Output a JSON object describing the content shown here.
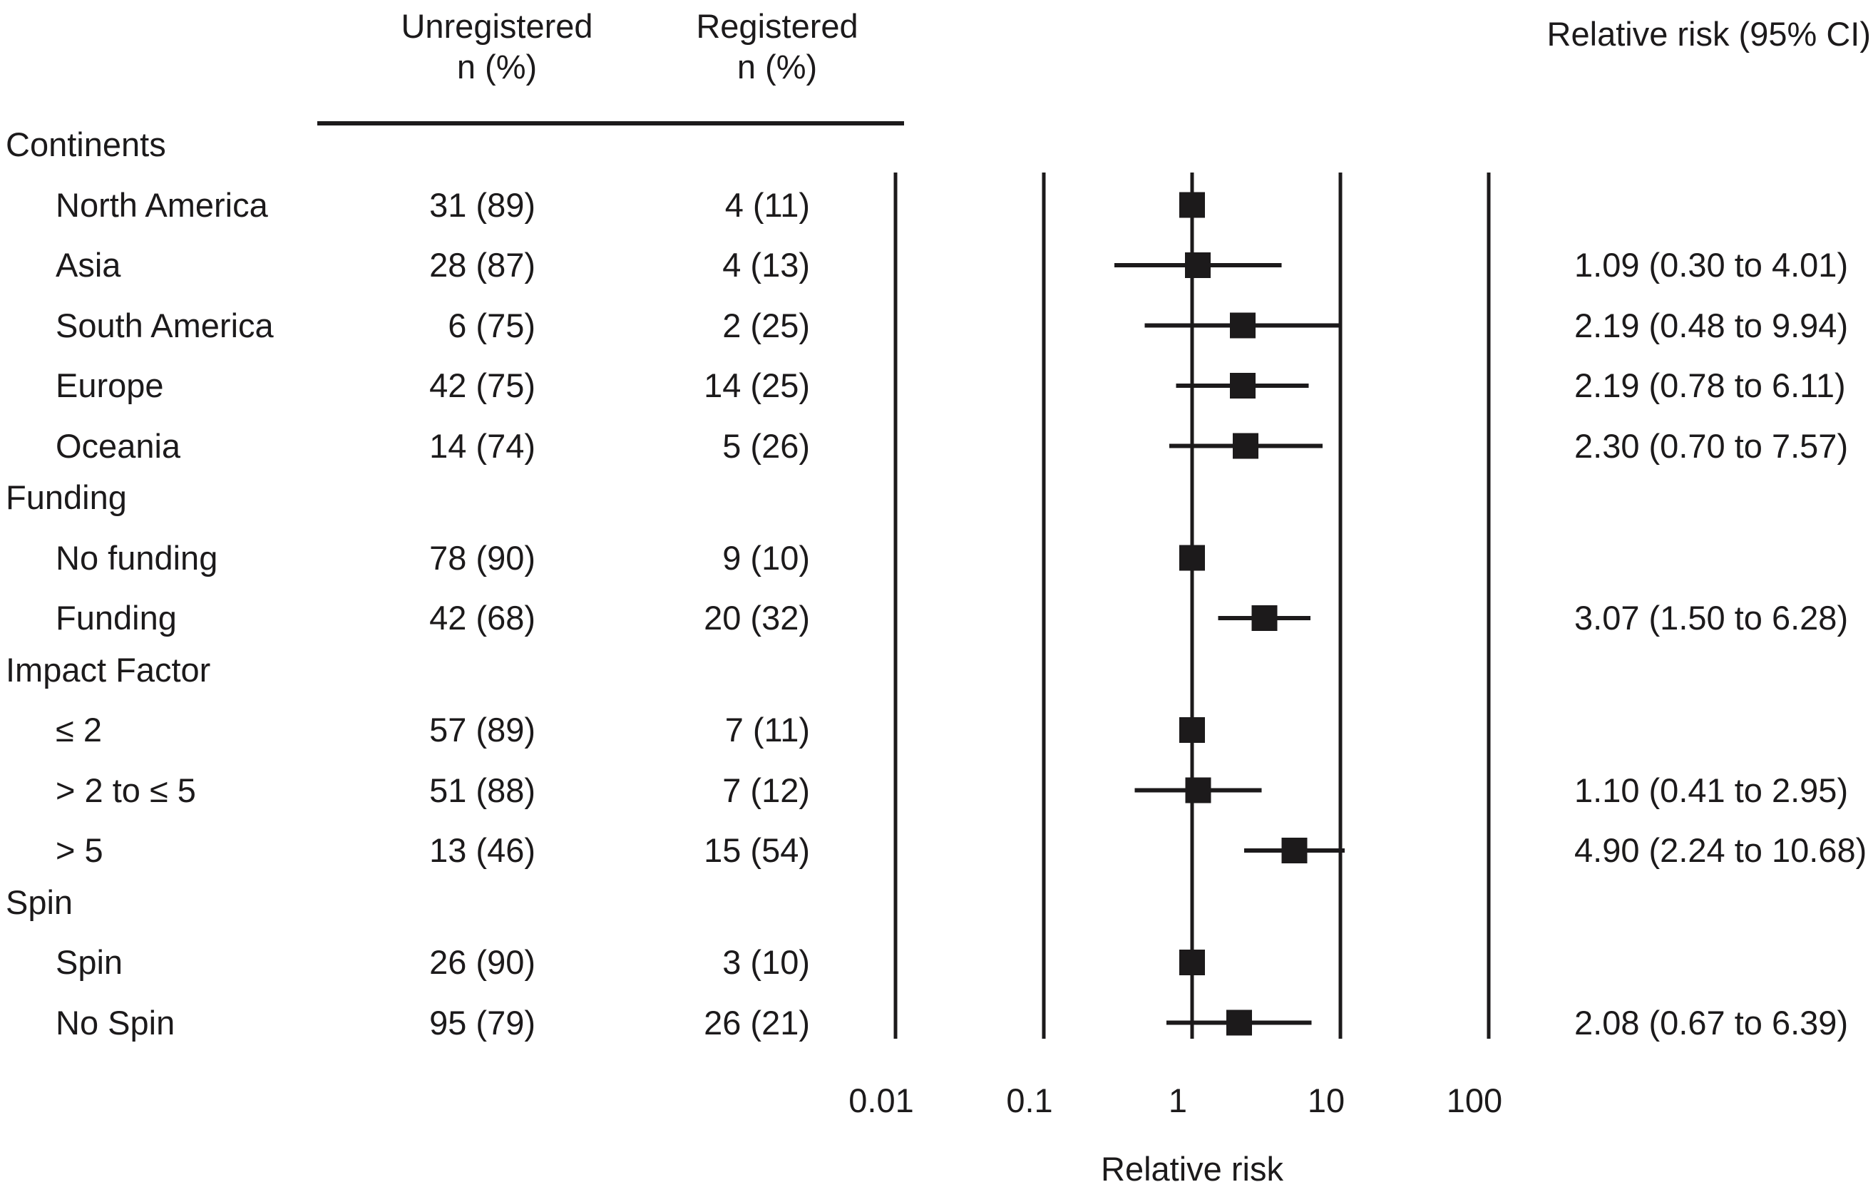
{
  "colors": {
    "ink": "#1c1a1b",
    "background": "#ffffff"
  },
  "header": {
    "unregistered_line1": "Unregistered",
    "unregistered_line2": "n (%)",
    "registered_line1": "Registered",
    "registered_line2": "n (%)",
    "rr_ci": "Relative risk (95% CI)"
  },
  "table": {
    "rows": [
      {
        "type": "group",
        "label": "Continents"
      },
      {
        "type": "item",
        "label": "North America",
        "unregistered": "31 (89)",
        "registered": "4 (11)",
        "ci_text": ""
      },
      {
        "type": "item",
        "label": "Asia",
        "unregistered": "28 (87)",
        "registered": "4 (13)",
        "ci_text": "1.09 (0.30 to 4.01)"
      },
      {
        "type": "item",
        "label": "South America",
        "unregistered": "6 (75)",
        "registered": "2 (25)",
        "ci_text": "2.19 (0.48 to 9.94)"
      },
      {
        "type": "item",
        "label": "Europe",
        "unregistered": "42 (75)",
        "registered": "14 (25)",
        "ci_text": "2.19 (0.78 to 6.11)"
      },
      {
        "type": "item",
        "label": "Oceania",
        "unregistered": "14 (74)",
        "registered": "5 (26)",
        "ci_text": "2.30 (0.70 to 7.57)"
      },
      {
        "type": "group",
        "label": "Funding"
      },
      {
        "type": "item",
        "label": "No funding",
        "unregistered": "78 (90)",
        "registered": "9 (10)",
        "ci_text": ""
      },
      {
        "type": "item",
        "label": "Funding",
        "unregistered": "42 (68)",
        "registered": "20 (32)",
        "ci_text": "3.07 (1.50 to 6.28)"
      },
      {
        "type": "group",
        "label": "Impact Factor"
      },
      {
        "type": "item",
        "label": "≤ 2",
        "unregistered": "57 (89)",
        "registered": "7 (11)",
        "ci_text": ""
      },
      {
        "type": "item",
        "label": "> 2 to ≤ 5",
        "unregistered": "51 (88)",
        "registered": "7 (12)",
        "ci_text": "1.10 (0.41 to 2.95)"
      },
      {
        "type": "item",
        "label": "> 5",
        "unregistered": "13 (46)",
        "registered": "15 (54)",
        "ci_text": "4.90 (2.24 to 10.68)"
      },
      {
        "type": "group",
        "label": "Spin"
      },
      {
        "type": "item",
        "label": "Spin",
        "unregistered": "26 (90)",
        "registered": "3 (10)",
        "ci_text": ""
      },
      {
        "type": "item",
        "label": "No Spin",
        "unregistered": "95 (79)",
        "registered": "26 (21)",
        "ci_text": "2.08 (0.67 to 6.39)"
      }
    ]
  },
  "chart_data": {
    "type": "scatter",
    "subtype": "forest-plot",
    "title": "",
    "xlabel": "Relative risk",
    "ylabel": "",
    "x_scale": "log10",
    "xlim": [
      0.01,
      100
    ],
    "x_ticks": [
      0.01,
      0.1,
      1,
      10,
      100
    ],
    "x_tick_labels": [
      "0.01",
      "0.1",
      "1",
      "10",
      "100"
    ],
    "grid": "vertical-lines-at-ticks",
    "legend": "none",
    "points": [
      {
        "label": "North America",
        "rr": 1.0,
        "ci_low": null,
        "ci_high": null,
        "reference": true
      },
      {
        "label": "Asia",
        "rr": 1.09,
        "ci_low": 0.3,
        "ci_high": 4.01,
        "reference": false
      },
      {
        "label": "South America",
        "rr": 2.19,
        "ci_low": 0.48,
        "ci_high": 9.94,
        "reference": false
      },
      {
        "label": "Europe",
        "rr": 2.19,
        "ci_low": 0.78,
        "ci_high": 6.11,
        "reference": false
      },
      {
        "label": "Oceania",
        "rr": 2.3,
        "ci_low": 0.7,
        "ci_high": 7.57,
        "reference": false
      },
      {
        "label": "No funding",
        "rr": 1.0,
        "ci_low": null,
        "ci_high": null,
        "reference": true
      },
      {
        "label": "Funding",
        "rr": 3.07,
        "ci_low": 1.5,
        "ci_high": 6.28,
        "reference": false
      },
      {
        "label": "≤ 2",
        "rr": 1.0,
        "ci_low": null,
        "ci_high": null,
        "reference": true
      },
      {
        "label": "> 2 to ≤ 5",
        "rr": 1.1,
        "ci_low": 0.41,
        "ci_high": 2.95,
        "reference": false
      },
      {
        "label": "> 5",
        "rr": 4.9,
        "ci_low": 2.24,
        "ci_high": 10.68,
        "reference": false
      },
      {
        "label": "Spin",
        "rr": 1.0,
        "ci_low": null,
        "ci_high": null,
        "reference": true
      },
      {
        "label": "No Spin",
        "rr": 2.08,
        "ci_low": 0.67,
        "ci_high": 6.39,
        "reference": false
      }
    ]
  }
}
